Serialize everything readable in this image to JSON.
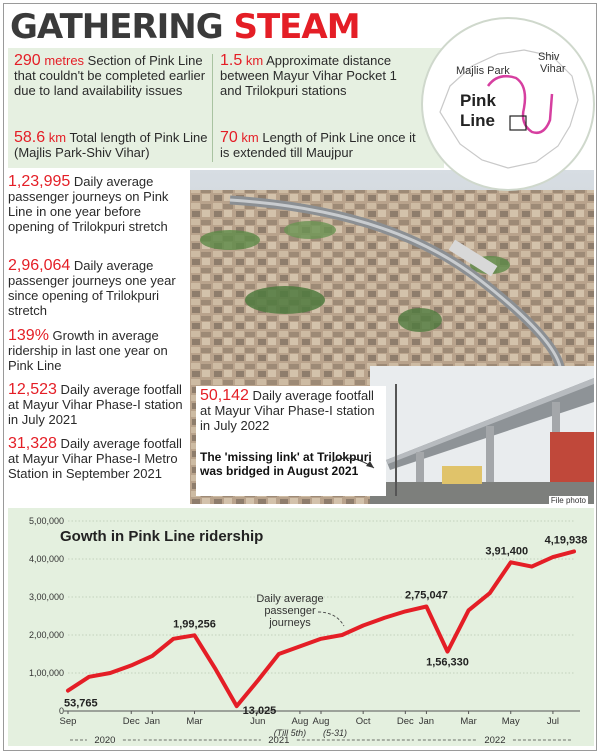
{
  "headline": {
    "word1": "GATHERING",
    "word2": "STEAM"
  },
  "facts_top": [
    {
      "num": "290",
      "unit": " metres",
      "text": " Section of Pink Line that couldn't be completed earlier due to land availability issues"
    },
    {
      "num": "58.6",
      "unit": " km",
      "text": " Total length of Pink Line (Majlis Park-Shiv Vihar)"
    },
    {
      "num": "1.5",
      "unit": " km",
      "text": " Approximate distance between Mayur Vihar Pocket 1 and Trilokpuri stations"
    },
    {
      "num": "70",
      "unit": " km",
      "text": " Length of Pink Line once it is extended till Maujpur"
    }
  ],
  "facts_left": [
    {
      "num": "1,23,995",
      "text": " Daily average passenger journeys on Pink Line in one year before opening of Trilokpuri stretch"
    },
    {
      "num": "2,96,064",
      "text": " Daily average passenger journeys one year since opening of Trilokpuri stretch"
    },
    {
      "num": "139%",
      "text": " Growth in average ridership in last one year on Pink Line"
    },
    {
      "num": "12,523",
      "text": " Daily average footfall at Mayur Vihar Phase-I station in July 2021"
    },
    {
      "num": "31,328",
      "text": " Daily average footfall at Mayur Vihar Phase-I Metro Station in September 2021"
    }
  ],
  "inset_fact": {
    "num": "50,142",
    "text": " Daily average footfall at Mayur Vihar Phase-I station in July 2022"
  },
  "inset_caption": "The 'missing link' at Trilokpuri was bridged in August 2021",
  "photo_credit": "File photo",
  "map": {
    "label_majlis": "Majlis Park",
    "label_shiv1": "Shiv",
    "label_shiv2": "Vihar",
    "line_label1": "Pink",
    "line_label2": "Line"
  },
  "colors": {
    "accent": "#e41e26",
    "band": "#e6f0e1",
    "pink_line": "#d63fa0"
  },
  "chart_data": {
    "type": "line",
    "title": "Gowth in Pink Line ridership",
    "annotation": "Daily average passenger journeys",
    "ylim": [
      0,
      500000
    ],
    "yticks": [
      0,
      100000,
      200000,
      300000,
      400000,
      500000
    ],
    "ytick_labels": [
      "0",
      "1,00,000",
      "2,00,000",
      "3,00,000",
      "4,00,000",
      "5,00,000"
    ],
    "xtick_labels": [
      "Sep",
      "Dec",
      "Jan",
      "Mar",
      "Jun",
      "Aug",
      "Aug",
      "Oct",
      "Dec",
      "Jan",
      "Mar",
      "May",
      "Jul"
    ],
    "xtick_index": [
      0,
      3,
      4,
      6,
      9,
      11,
      12,
      14,
      16,
      17,
      19,
      21,
      23
    ],
    "sub_labels": {
      "till5": "(Till 5th)",
      "r531": "(5-31)"
    },
    "years": [
      "2020",
      "2021",
      "2022"
    ],
    "series": [
      {
        "values": [
          53765,
          90000,
          100000,
          120000,
          145000,
          190000,
          199256,
          110000,
          13025,
          80000,
          150000,
          170000,
          190000,
          200000,
          225000,
          245000,
          262000,
          275047,
          156330,
          265000,
          310000,
          391400,
          380000,
          405000,
          419938
        ]
      }
    ],
    "data_labels": [
      {
        "index": 0,
        "text": "53,765"
      },
      {
        "index": 6,
        "text": "1,99,256"
      },
      {
        "index": 8,
        "text": "13,025"
      },
      {
        "index": 17,
        "text": "2,75,047"
      },
      {
        "index": 18,
        "text": "1,56,330"
      },
      {
        "index": 21,
        "text": "3,91,400"
      },
      {
        "index": 24,
        "text": "4,19,938"
      }
    ],
    "grid": true,
    "line_color": "#e41e26"
  }
}
